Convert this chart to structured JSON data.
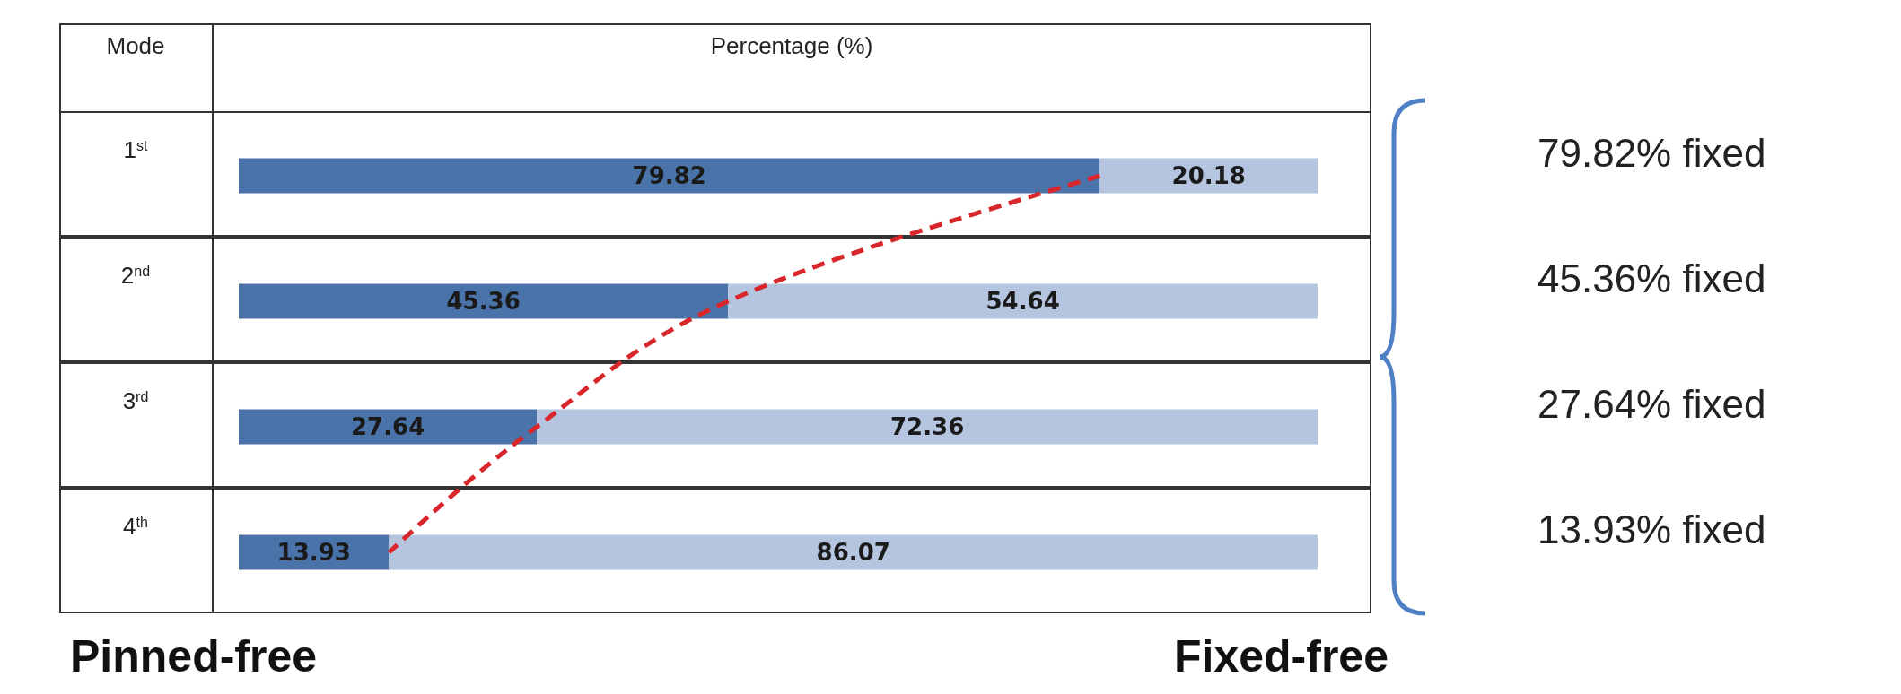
{
  "chart_data": {
    "type": "bar",
    "orientation": "horizontal",
    "stacked": true,
    "xlabel": "Percentage (%)",
    "ylabel": "Mode",
    "categories": [
      "1$^{st}$",
      "2$^{nd}$",
      "3$^{rd}$",
      "4$^{th}$"
    ],
    "series": [
      {
        "color": "#4a73aa",
        "values": [
          79.82,
          45.36,
          27.64,
          13.93
        ],
        "value_labels": [
          "79.82",
          "45.36",
          "27.64",
          "13.93"
        ]
      },
      {
        "color": "#b5c4df",
        "values": [
          20.18,
          54.64,
          72.36,
          86.07
        ],
        "value_labels": [
          "20.18",
          "54.64",
          "72.36",
          "86.07"
        ]
      },
      {
        "type": "line",
        "color": "#d9262b",
        "values": [
          79.82,
          45.36,
          27.64,
          13.93
        ],
        "line_style": "dashed",
        "marker": "none"
      }
    ],
    "tick_labels": "y",
    "annotations": [
      "79.82% fixed",
      "45.36% fixed",
      "27.64% fixed",
      "13.93% fixed",
      "Pinned-free",
      "Fixed-free"
    ]
  }
}
